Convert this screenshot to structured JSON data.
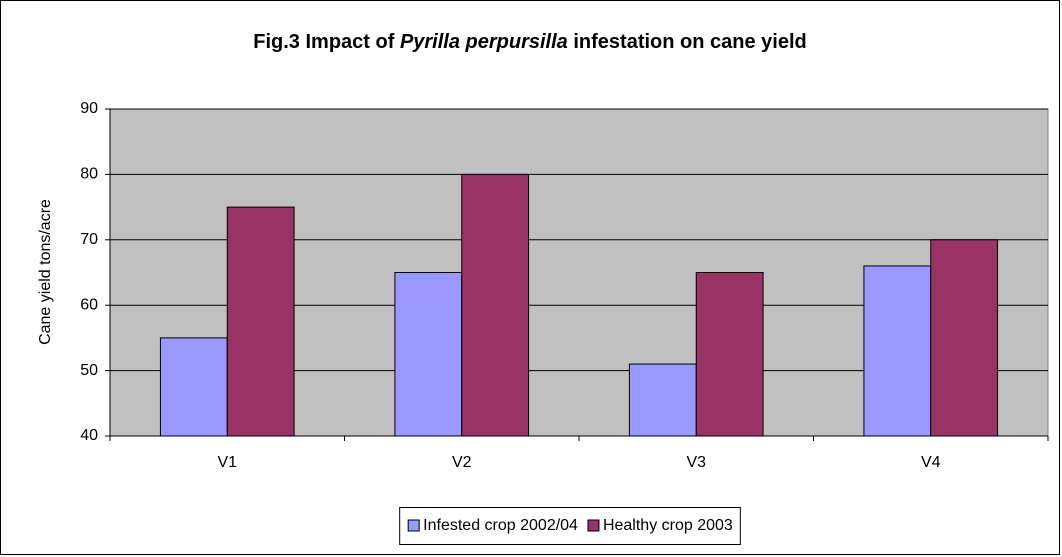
{
  "chart_data": {
    "type": "bar",
    "title": [
      {
        "text": "Fig.3  Impact of ",
        "italic": false
      },
      {
        "text": "Pyrilla perpursilla",
        "italic": true
      },
      {
        "text": " infestation on cane yield",
        "italic": false
      }
    ],
    "ylabel": "Cane yield tons/acre",
    "categories": [
      "V1",
      "V2",
      "V3",
      "V4"
    ],
    "series": [
      {
        "name": "Infested crop 2002/04",
        "color": "#9999ff",
        "values": [
          55,
          65,
          51,
          66
        ]
      },
      {
        "name": "Healthy crop 2003",
        "color": "#993366",
        "values": [
          75,
          80,
          65,
          70
        ]
      }
    ],
    "ylim": [
      40,
      90
    ],
    "yticks": [
      40,
      50,
      60,
      70,
      80,
      90
    ],
    "grid": true,
    "legend": "bottom"
  }
}
